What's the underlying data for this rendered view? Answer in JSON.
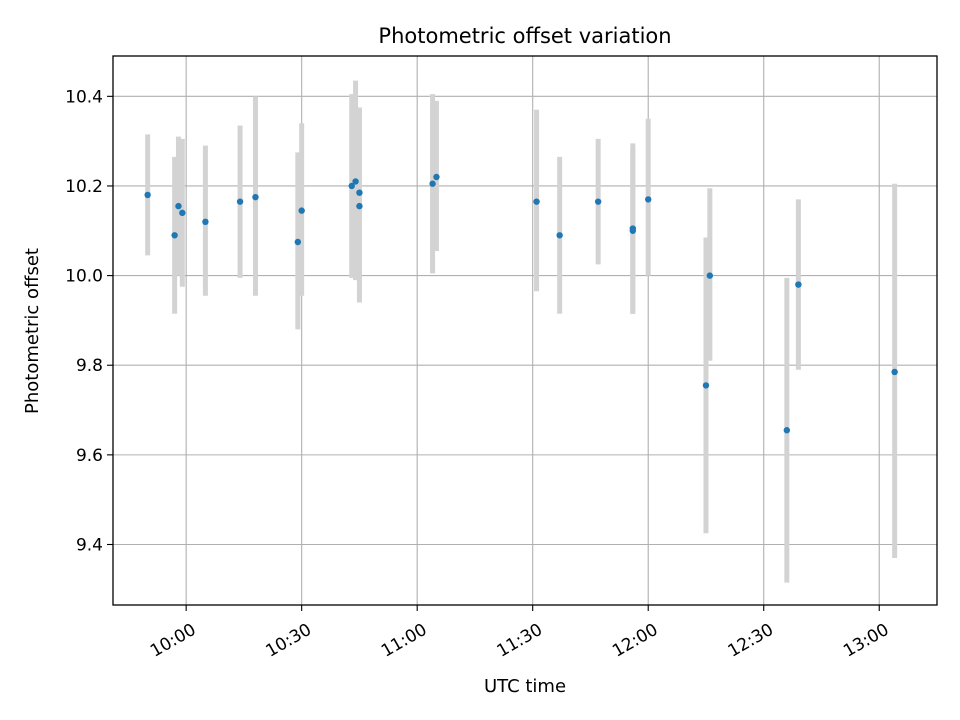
{
  "chart_data": {
    "type": "scatter",
    "title": "Photometric offset variation",
    "xlabel": "UTC time",
    "ylabel": "Photometric offset",
    "x_unit": "time of day (UTC)",
    "xlim": [
      "09:41",
      "13:15"
    ],
    "ylim": [
      9.265,
      10.49
    ],
    "x_ticks": [
      "10:00",
      "10:30",
      "11:00",
      "11:30",
      "12:00",
      "12:30",
      "13:00"
    ],
    "y_ticks": [
      9.4,
      9.6,
      9.8,
      10.0,
      10.2,
      10.4
    ],
    "grid": true,
    "legend": "none",
    "series": [
      {
        "marker_color": "#1f77b4",
        "errorbar_color": "#d3d3d3",
        "points": [
          {
            "x": "09:50",
            "y": 10.18,
            "low": 10.045,
            "high": 10.315
          },
          {
            "x": "09:57",
            "y": 10.09,
            "low": 9.915,
            "high": 10.265
          },
          {
            "x": "09:58",
            "y": 10.155,
            "low": 10.0,
            "high": 10.31
          },
          {
            "x": "09:59",
            "y": 10.14,
            "low": 9.975,
            "high": 10.305
          },
          {
            "x": "10:05",
            "y": 10.12,
            "low": 9.955,
            "high": 10.29
          },
          {
            "x": "10:14",
            "y": 10.165,
            "low": 9.995,
            "high": 10.335
          },
          {
            "x": "10:18",
            "y": 10.175,
            "low": 9.955,
            "high": 10.4
          },
          {
            "x": "10:29",
            "y": 10.075,
            "low": 9.88,
            "high": 10.275
          },
          {
            "x": "10:30",
            "y": 10.145,
            "low": 9.955,
            "high": 10.34
          },
          {
            "x": "10:43",
            "y": 10.2,
            "low": 9.995,
            "high": 10.405
          },
          {
            "x": "10:44",
            "y": 10.21,
            "low": 9.99,
            "high": 10.435
          },
          {
            "x": "10:45",
            "y": 10.185,
            "low": 9.995,
            "high": 10.375
          },
          {
            "x": "10:45",
            "y": 10.155,
            "low": 9.94,
            "high": 10.37
          },
          {
            "x": "11:04",
            "y": 10.205,
            "low": 10.005,
            "high": 10.405
          },
          {
            "x": "11:05",
            "y": 10.22,
            "low": 10.055,
            "high": 10.39
          },
          {
            "x": "11:31",
            "y": 10.165,
            "low": 9.965,
            "high": 10.37
          },
          {
            "x": "11:37",
            "y": 10.09,
            "low": 9.915,
            "high": 10.265
          },
          {
            "x": "11:47",
            "y": 10.165,
            "low": 10.025,
            "high": 10.305
          },
          {
            "x": "11:56",
            "y": 10.1,
            "low": 9.915,
            "high": 10.285
          },
          {
            "x": "11:56",
            "y": 10.105,
            "low": 9.915,
            "high": 10.295
          },
          {
            "x": "12:00",
            "y": 10.17,
            "low": 10.0,
            "high": 10.35
          },
          {
            "x": "12:15",
            "y": 9.755,
            "low": 9.425,
            "high": 10.085
          },
          {
            "x": "12:16",
            "y": 10.0,
            "low": 9.81,
            "high": 10.195
          },
          {
            "x": "12:36",
            "y": 9.655,
            "low": 9.315,
            "high": 9.995
          },
          {
            "x": "12:39",
            "y": 9.98,
            "low": 9.79,
            "high": 10.17
          },
          {
            "x": "13:04",
            "y": 9.785,
            "low": 9.37,
            "high": 10.205
          }
        ]
      }
    ]
  }
}
